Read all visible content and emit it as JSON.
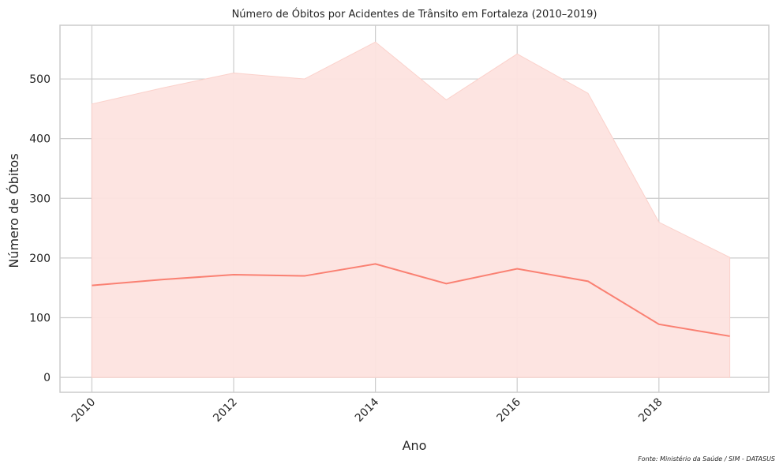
{
  "chart_data": {
    "type": "area",
    "title": "Número de Óbitos por Acidentes de Trânsito em Fortaleza (2010–2019)",
    "xlabel": "Ano",
    "ylabel": "Número de Óbitos",
    "x": [
      2010,
      2011,
      2012,
      2013,
      2014,
      2015,
      2016,
      2017,
      2018,
      2019
    ],
    "series": [
      {
        "values": [
          154,
          164,
          172,
          170,
          190,
          157,
          182,
          161,
          89,
          69
        ]
      }
    ],
    "band": {
      "lower": [
        0,
        0,
        0,
        0,
        0,
        0,
        0,
        0,
        0,
        0
      ],
      "upper": [
        458,
        485,
        510,
        500,
        562,
        465,
        542,
        476,
        260,
        201
      ]
    },
    "x_ticks": [
      "2010",
      "2012",
      "2014",
      "2016",
      "2018"
    ],
    "y_ticks": [
      "0",
      "100",
      "200",
      "300",
      "400",
      "500"
    ],
    "xlim": [
      2009.55,
      2019.55
    ],
    "ylim": [
      -25,
      590
    ],
    "grid": true,
    "colors": {
      "line": "#fa8072",
      "band": "#fde3df",
      "band_edge": "#fbd1cb",
      "grid": "#cccccc",
      "spine": "#cccccc"
    }
  },
  "source_note": "Fonte: Ministério da Saúde / SIM - DATASUS"
}
